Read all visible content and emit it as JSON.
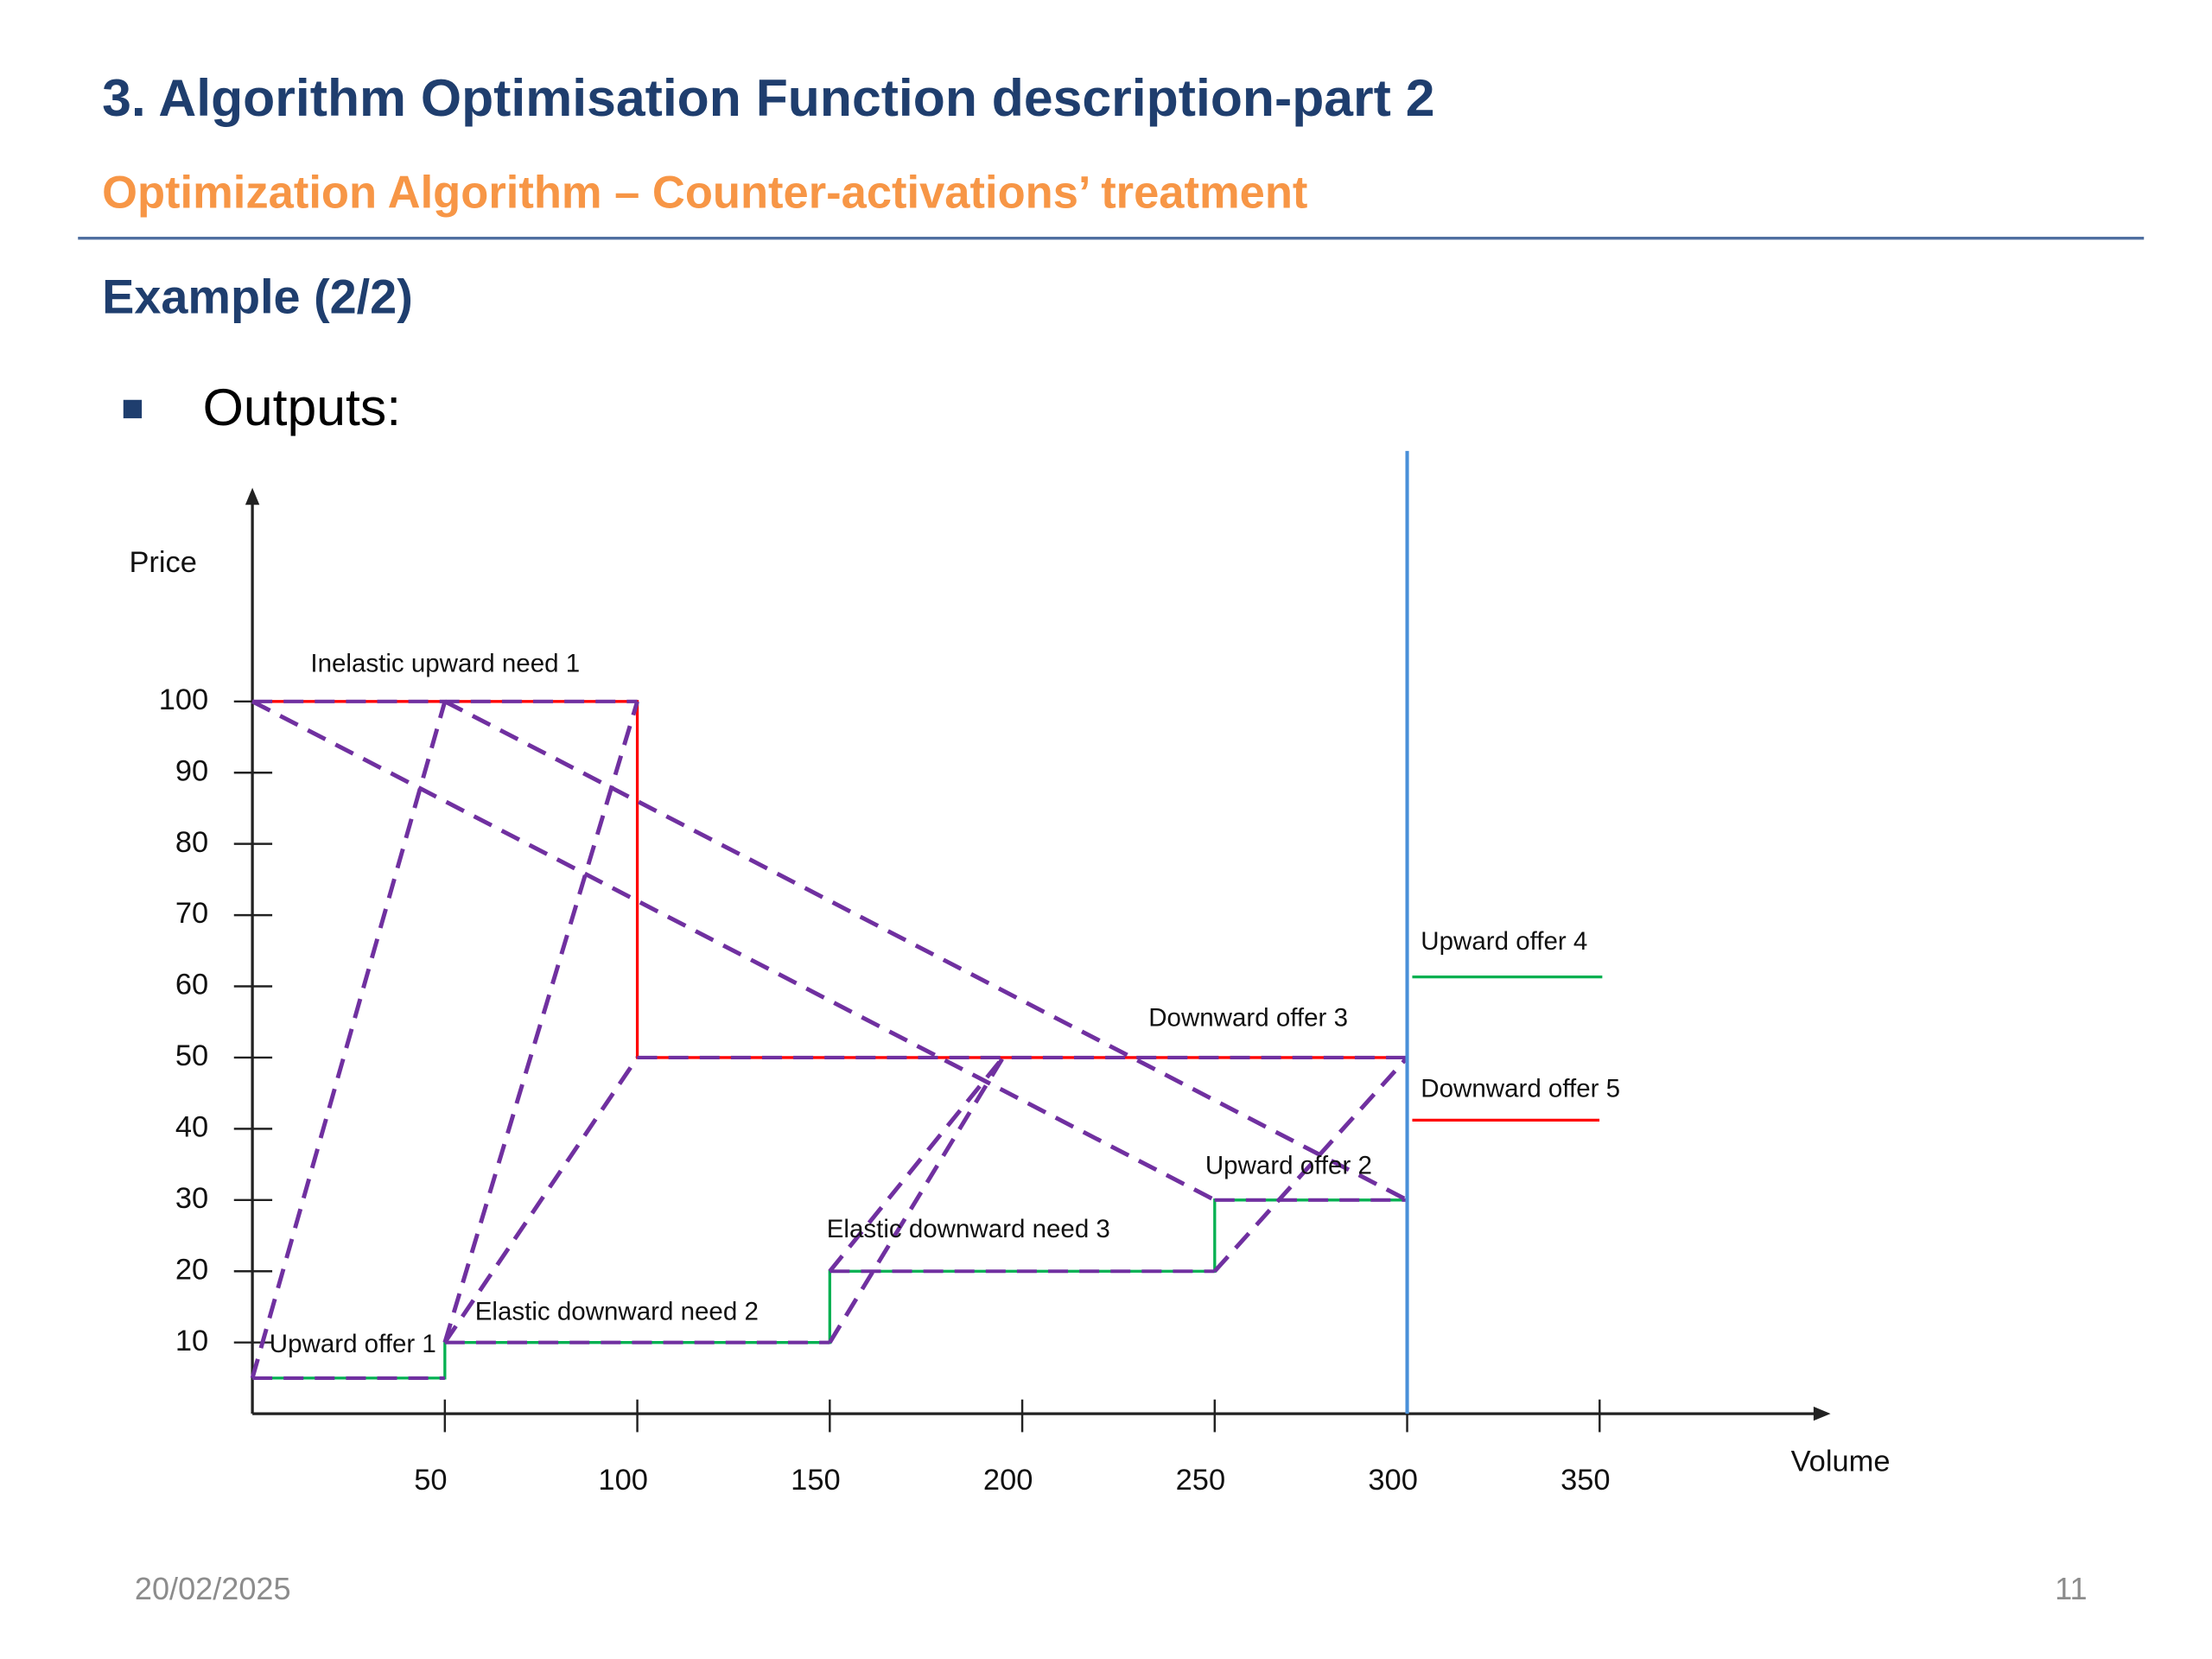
{
  "slide": {
    "title": "3. Algorithm Optimisation Function description-part 2",
    "subtitle": "Optimization Algorithm – Counter-activations’ treatment",
    "heading": "Example (2/2)",
    "bullet": "Outputs:",
    "date": "20/02/2025",
    "page": "11"
  },
  "chart_data": {
    "type": "line",
    "xlabel": "Volume",
    "ylabel": "Price",
    "xlim": [
      0,
      410
    ],
    "ylim": [
      0,
      130
    ],
    "xticks": [
      50,
      100,
      150,
      200,
      250,
      300,
      350
    ],
    "yticks": [
      10,
      20,
      30,
      40,
      50,
      60,
      70,
      80,
      90,
      100
    ],
    "vline": {
      "x": 300,
      "color": "#4a90d9"
    },
    "series": [
      {
        "color": "#ff0000",
        "x": [
          0,
          100,
          100,
          300
        ],
        "values": [
          100,
          100,
          50,
          50
        ]
      },
      {
        "color": "#00b050",
        "x": [
          0,
          50,
          50,
          150,
          150,
          250,
          250,
          300
        ],
        "values": [
          5,
          5,
          10,
          10,
          20,
          20,
          30,
          30
        ]
      }
    ],
    "links": {
      "color": "#7030a0",
      "lines": [
        {
          "x": [
            0,
            250
          ],
          "values": [
            100,
            30
          ]
        },
        {
          "x": [
            50,
            300
          ],
          "values": [
            100,
            30
          ]
        },
        {
          "x": [
            0,
            50
          ],
          "values": [
            5,
            100
          ]
        },
        {
          "x": [
            50,
            100
          ],
          "values": [
            10,
            100
          ]
        },
        {
          "x": [
            50,
            100
          ],
          "values": [
            10,
            50
          ]
        },
        {
          "x": [
            150,
            195
          ],
          "values": [
            10,
            50
          ]
        },
        {
          "x": [
            150,
            195
          ],
          "values": [
            20,
            50
          ]
        },
        {
          "x": [
            250,
            300
          ],
          "values": [
            20,
            50
          ]
        }
      ]
    },
    "annotations": [
      "Inelastic upward need 1",
      "Downward offer 3",
      "Upward offer 4",
      "Downward offer 5",
      "Upward offer 2",
      "Elastic downward need 3",
      "Elastic downward need 2",
      "Upward offer 1"
    ]
  }
}
